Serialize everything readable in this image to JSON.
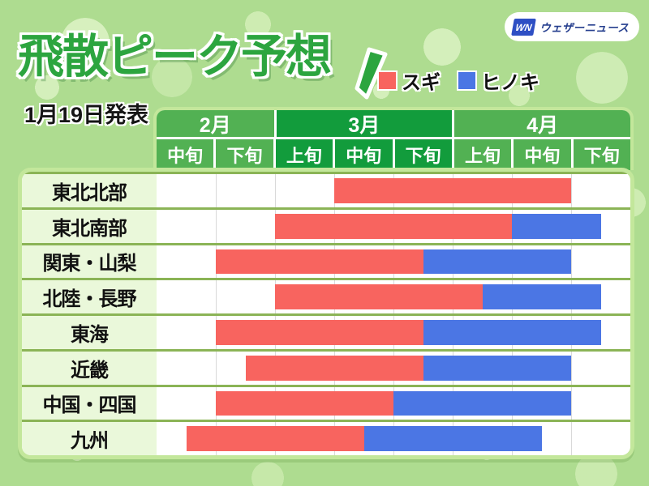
{
  "page": {
    "background_color": "#AEDC90"
  },
  "header": {
    "title": "飛散ピーク予想",
    "title_color": "#2CA53F",
    "announced": "1月19日発表",
    "legend": [
      {
        "label": "スギ",
        "color": "#F8645F"
      },
      {
        "label": "ヒノキ",
        "color": "#4B76E4"
      }
    ],
    "logo": {
      "mark": "WN",
      "text": "ウェザーニュース"
    }
  },
  "chart_data": {
    "type": "gantt",
    "title": "飛散ピーク予想",
    "subtitle": "1月19日発表",
    "unit_note": "Each column is one 10-day period (旬). Bar positions are column offsets 0-8 measured from the start of 2月中旬.",
    "columns": [
      "2月中旬",
      "2月下旬",
      "3月上旬",
      "3月中旬",
      "3月下旬",
      "4月上旬",
      "4月中旬",
      "4月下旬"
    ],
    "month_groups": [
      {
        "label": "2月",
        "periods": [
          "中旬",
          "下旬"
        ],
        "color": "#52B153"
      },
      {
        "label": "3月",
        "periods": [
          "上旬",
          "中旬",
          "下旬"
        ],
        "color": "#129C3C"
      },
      {
        "label": "4月",
        "periods": [
          "上旬",
          "中旬",
          "下旬"
        ],
        "color": "#52B153"
      }
    ],
    "series_colors": {
      "sugi": "#F8645F",
      "hinoki": "#4B76E4"
    },
    "rows": [
      {
        "region": "東北北部",
        "sugi": [
          3,
          7
        ],
        "hinoki": null
      },
      {
        "region": "東北南部",
        "sugi": [
          2,
          6
        ],
        "hinoki": [
          6,
          7.5
        ]
      },
      {
        "region": "関東・山梨",
        "sugi": [
          1,
          4.5
        ],
        "hinoki": [
          4.5,
          7
        ]
      },
      {
        "region": "北陸・長野",
        "sugi": [
          2,
          5.5
        ],
        "hinoki": [
          5.5,
          7.5
        ]
      },
      {
        "region": "東海",
        "sugi": [
          1,
          4.5
        ],
        "hinoki": [
          4.5,
          7.5
        ]
      },
      {
        "region": "近畿",
        "sugi": [
          1.5,
          4.5
        ],
        "hinoki": [
          4.5,
          7
        ]
      },
      {
        "region": "中国・四国",
        "sugi": [
          1,
          4
        ],
        "hinoki": [
          4,
          7
        ]
      },
      {
        "region": "九州",
        "sugi": [
          0.5,
          3.5
        ],
        "hinoki": [
          3.5,
          6.5
        ]
      }
    ]
  }
}
